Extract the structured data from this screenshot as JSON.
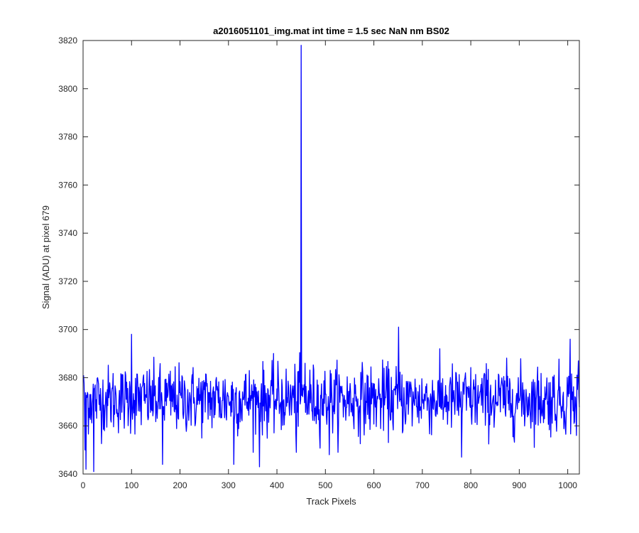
{
  "chart_data": {
    "type": "line",
    "title": "a2016051101_img.mat int time = 1.5 sec  NaN nm BS02",
    "xlabel": "Track Pixels",
    "ylabel": "Signal (ADU) at pixel 679",
    "xlim": [
      0,
      1024
    ],
    "ylim": [
      3640,
      3820
    ],
    "xticks": [
      0,
      100,
      200,
      300,
      400,
      500,
      600,
      700,
      800,
      900,
      1000
    ],
    "yticks": [
      3640,
      3660,
      3680,
      3700,
      3720,
      3740,
      3760,
      3780,
      3800,
      3820
    ],
    "grid": false,
    "box": true,
    "series": [
      {
        "color": "#0000ff",
        "x_start": 1,
        "x_step": 1,
        "length": 1024,
        "baseline_mean": 3671,
        "baseline_std": 7,
        "features": [
          {
            "x": 1,
            "y": 3681
          },
          {
            "x": 4,
            "y": 3650
          },
          {
            "x": 6,
            "y": 3642
          },
          {
            "x": 22,
            "y": 3641
          },
          {
            "x": 100,
            "y": 3698
          },
          {
            "x": 164,
            "y": 3644
          },
          {
            "x": 311,
            "y": 3644
          },
          {
            "x": 364,
            "y": 3643
          },
          {
            "x": 440,
            "y": 3649
          },
          {
            "x": 450,
            "y": 3818
          },
          {
            "x": 455,
            "y": 3675
          },
          {
            "x": 458,
            "y": 3686
          },
          {
            "x": 508,
            "y": 3648
          },
          {
            "x": 651,
            "y": 3701
          },
          {
            "x": 781,
            "y": 3647
          },
          {
            "x": 1005,
            "y": 3696
          },
          {
            "x": 1018,
            "y": 3656
          },
          {
            "x": 1022,
            "y": 3687
          }
        ]
      }
    ]
  }
}
